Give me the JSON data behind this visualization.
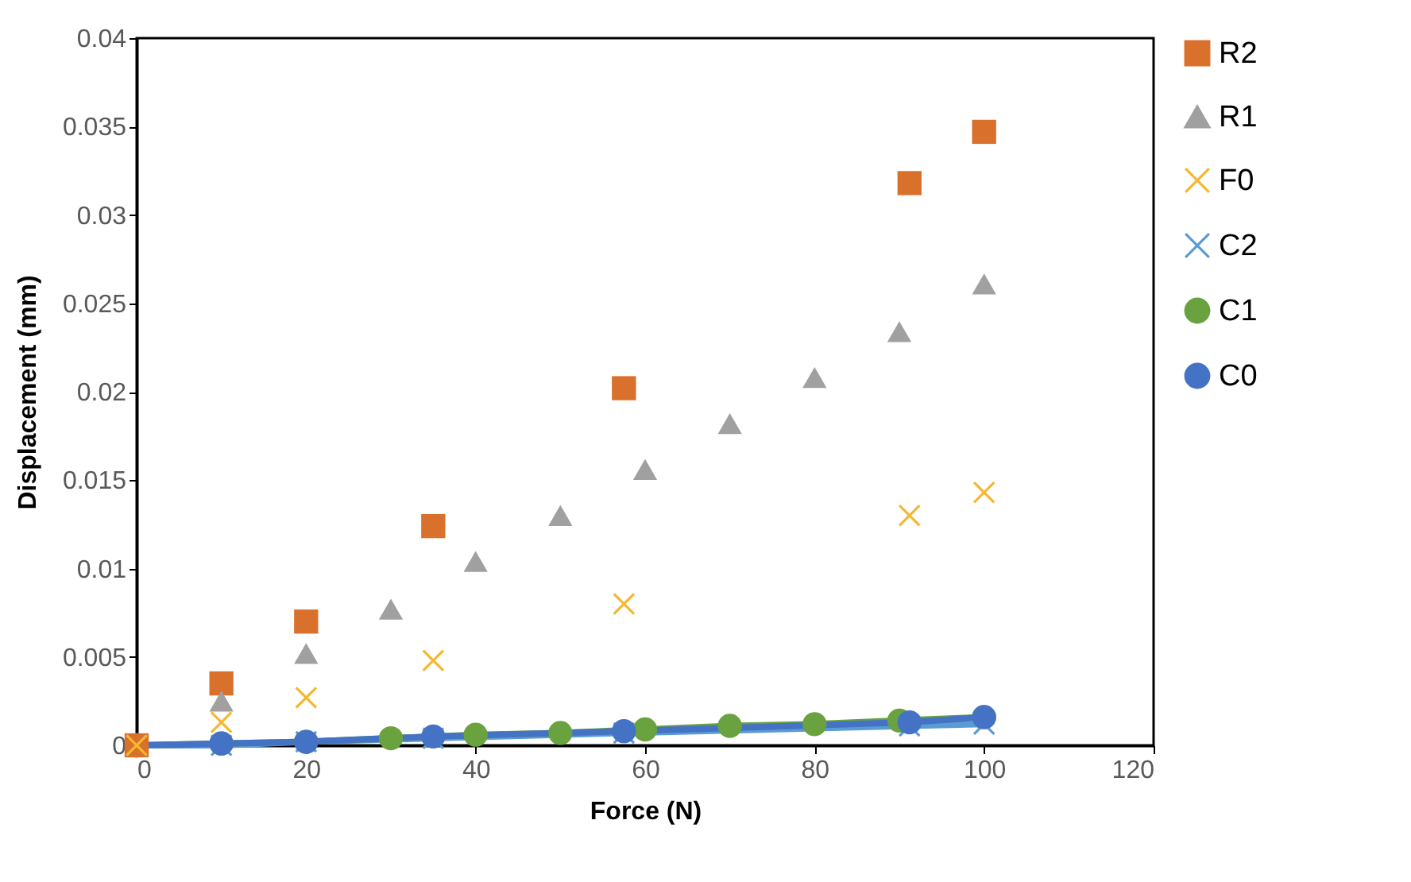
{
  "chart_data": {
    "type": "scatter",
    "xlabel": "Force (N)",
    "ylabel": "Displacement (mm)",
    "xlim": [
      0,
      120
    ],
    "xticks": [
      0,
      20,
      40,
      60,
      80,
      100,
      120
    ],
    "ylim": [
      0,
      0.04
    ],
    "yticks": [
      0,
      0.005,
      0.01,
      0.015,
      0.02,
      0.025,
      0.03,
      0.035,
      0.04
    ],
    "grid": false,
    "legend": "right",
    "series": [
      {
        "name": "R2",
        "marker": "square",
        "color": "#d9702c",
        "x": [
          0,
          10,
          20,
          35,
          57.5,
          91.2,
          100
        ],
        "values": [
          0,
          0.0035,
          0.007,
          0.0124,
          0.0202,
          0.0318,
          0.0347
        ]
      },
      {
        "name": "R1",
        "marker": "triangle",
        "color": "#a0a0a0",
        "x": [
          10,
          20,
          30,
          40,
          50,
          60,
          70,
          80,
          90,
          100
        ],
        "values": [
          0.0025,
          0.0052,
          0.0077,
          0.0104,
          0.013,
          0.0156,
          0.0182,
          0.0208,
          0.0234,
          0.0261
        ]
      },
      {
        "name": "F0",
        "marker": "cross",
        "color": "#f5b731",
        "x": [
          0,
          10,
          20,
          35,
          57.5,
          91.2,
          100
        ],
        "values": [
          0,
          0.0013,
          0.0027,
          0.0048,
          0.008,
          0.013,
          0.0143
        ]
      },
      {
        "name": "C2",
        "type": "line",
        "marker": "cross",
        "color": "#5b9bd5",
        "x": [
          0,
          10,
          20,
          35,
          57.5,
          91.2,
          100
        ],
        "values": [
          0,
          0,
          0.0002,
          0.0004,
          0.0007,
          0.0011,
          0.0012
        ]
      },
      {
        "name": "C1",
        "type": "line",
        "marker": "circle",
        "color": "#6aa23f",
        "x": [
          0,
          10,
          20,
          30,
          40,
          50,
          60,
          70,
          80,
          90,
          100
        ],
        "values": [
          0,
          0.0001,
          0.0002,
          0.0004,
          0.0006,
          0.0007,
          0.0009,
          0.0011,
          0.0012,
          0.0014,
          0.0016
        ]
      },
      {
        "name": "C0",
        "type": "line",
        "marker": "circle",
        "color": "#4472c4",
        "x": [
          0,
          10,
          20,
          35,
          57.5,
          91.2,
          100
        ],
        "values": [
          0,
          0.0001,
          0.0002,
          0.0005,
          0.0008,
          0.0013,
          0.0016
        ]
      }
    ]
  }
}
